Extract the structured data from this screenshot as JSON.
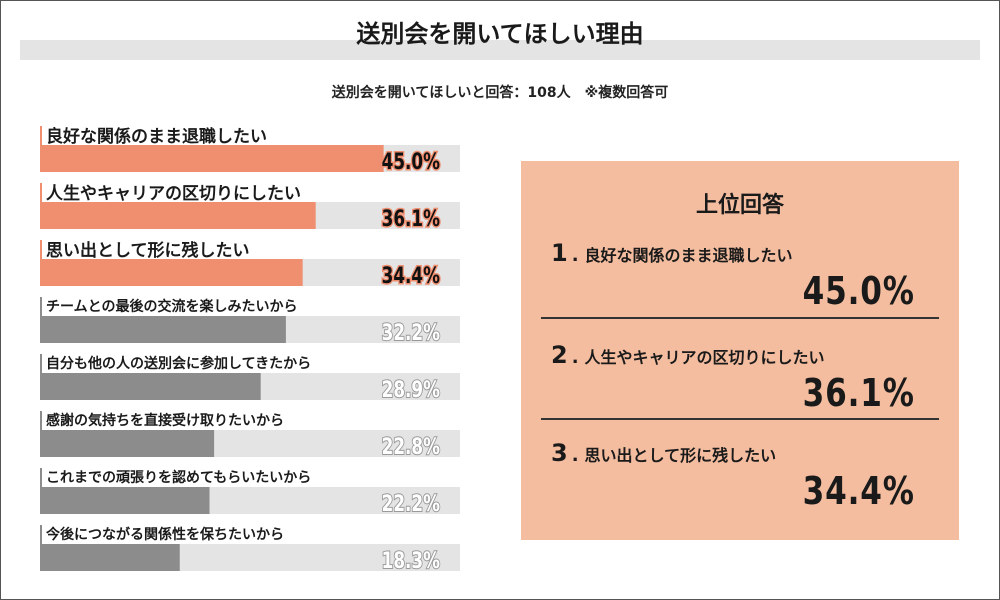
{
  "title": "送別会を開いてほしい理由",
  "subtitle": "送別会を開いてほしいと回答：108人　※複数回答可",
  "colors": {
    "highlight_bar": "#ef8f70",
    "normal_bar": "#8c8c8c",
    "track": "#e4e4e4",
    "panel": "#f4bd9f"
  },
  "chart_data": {
    "type": "bar",
    "orientation": "horizontal",
    "categories": [
      "良好な関係のまま退職したい",
      "人生やキャリアの区切りにしたい",
      "思い出として形に残したい",
      "チームとの最後の交流を楽しみたいから",
      "自分も他の人の送別会に参加してきたから",
      "感謝の気持ちを直接受け取りたいから",
      "これまでの頑張りを認めてもらいたいから",
      "今後につながる関係性を保ちたいから"
    ],
    "values": [
      45.0,
      36.1,
      34.4,
      32.2,
      28.9,
      22.8,
      22.2,
      18.3
    ],
    "value_labels": [
      "45.0%",
      "36.1%",
      "34.4%",
      "32.2%",
      "28.9%",
      "22.8%",
      "22.2%",
      "18.3%"
    ],
    "highlighted": [
      true,
      true,
      true,
      false,
      false,
      false,
      false,
      false
    ],
    "xlim": [
      0,
      55
    ],
    "grid": false
  },
  "top_panel": {
    "title": "上位回答",
    "items": [
      {
        "rank": "1",
        "dot": ".",
        "label": "良好な関係のまま退職したい",
        "value": "45.0%"
      },
      {
        "rank": "2",
        "dot": ".",
        "label": "人生やキャリアの区切りにしたい",
        "value": "36.1%"
      },
      {
        "rank": "3",
        "dot": ".",
        "label": "思い出として形に残したい",
        "value": "34.4%"
      }
    ]
  }
}
